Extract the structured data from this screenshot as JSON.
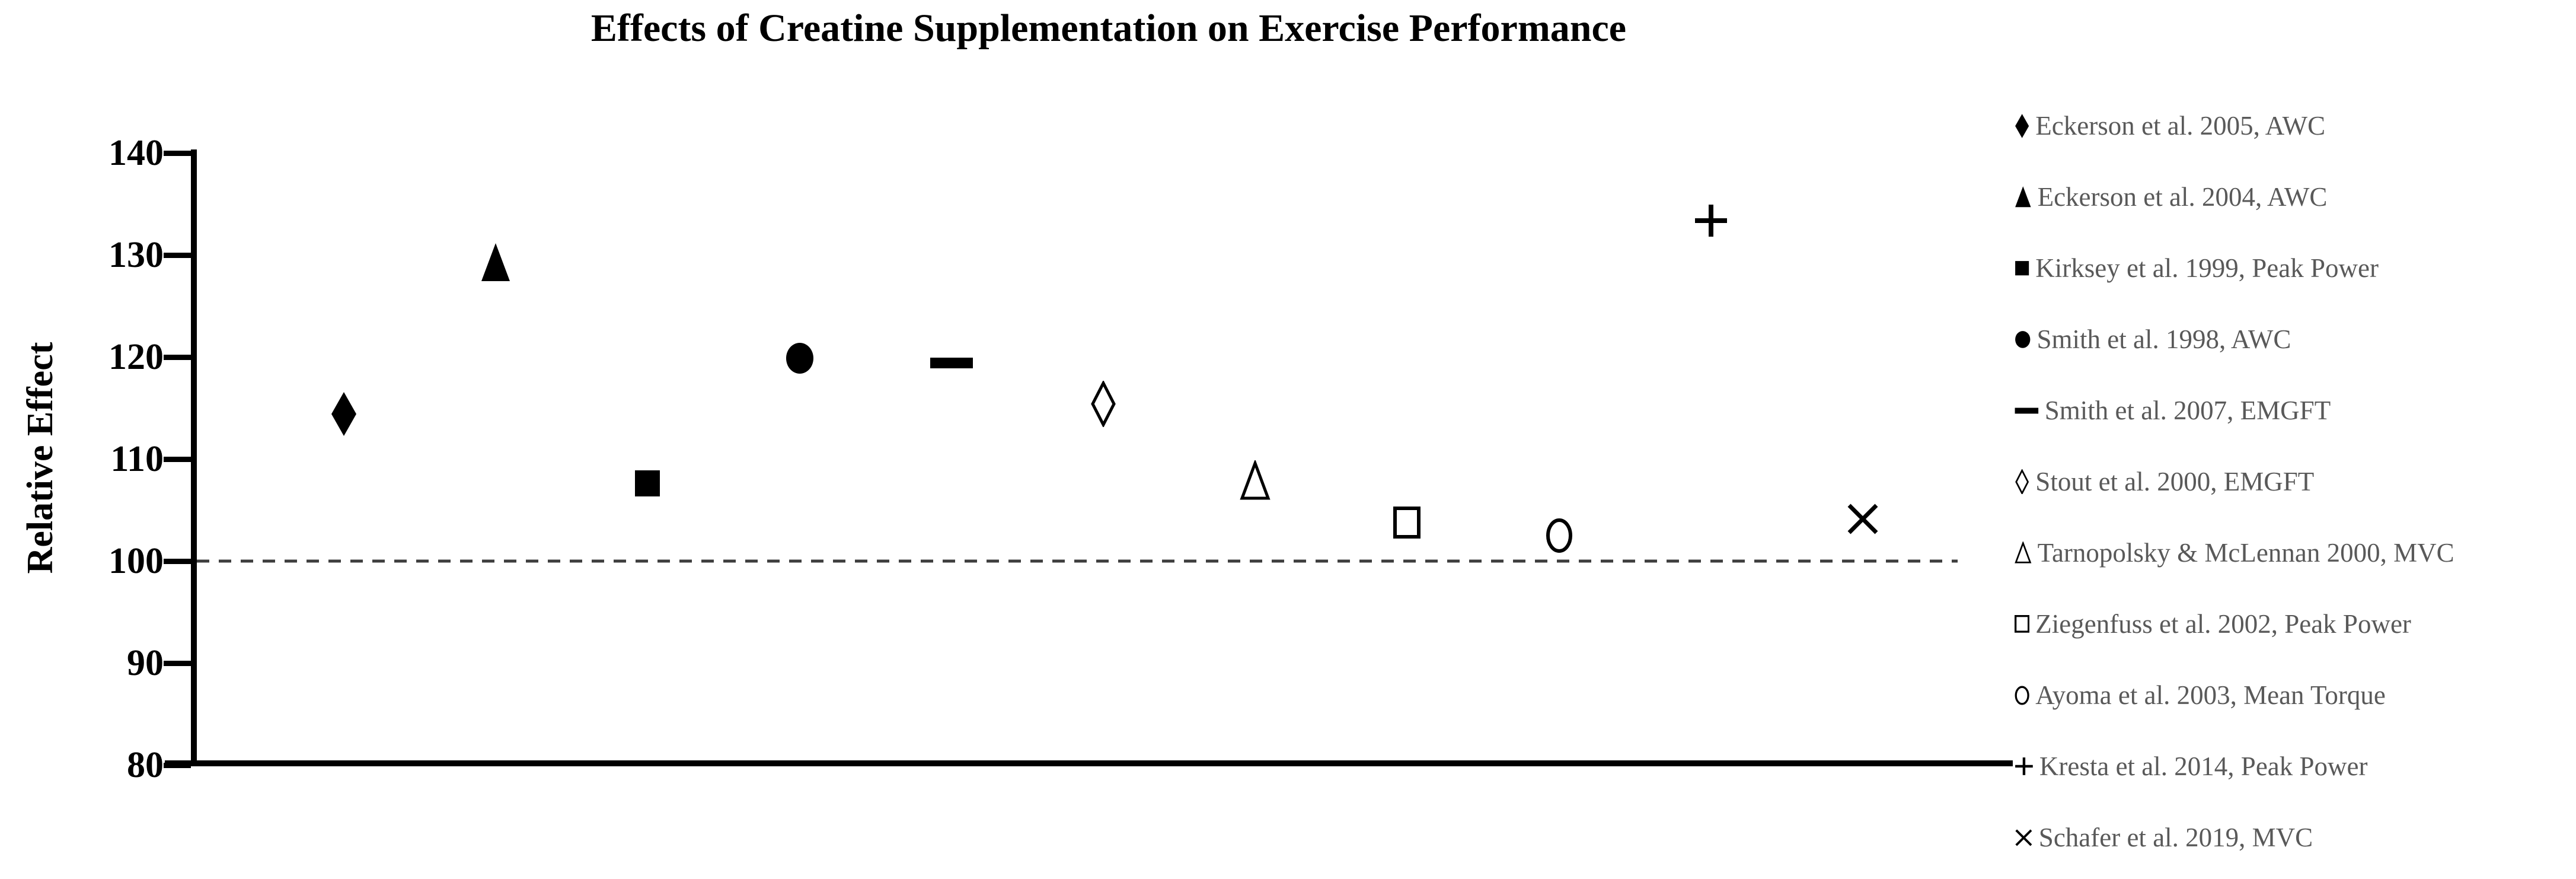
{
  "chart_data": {
    "type": "scatter",
    "title": "Effects of Creatine Supplementation on Exercise Performance",
    "xlabel": "",
    "ylabel": "Relative Effect",
    "ylim": [
      80,
      140
    ],
    "yticks": [
      140,
      130,
      120,
      110,
      100,
      90,
      80
    ],
    "reference_line_y": 100,
    "reference_line_style": "dashed",
    "grid": false,
    "legend_position": "right",
    "marker_color": "#000000",
    "legend_text_color": "#595959",
    "series": [
      {
        "name": "Eckerson et al. 2005, AWC",
        "marker": "filled-diamond",
        "x": 1,
        "y": 114.4
      },
      {
        "name": "Eckerson et al. 2004, AWC",
        "marker": "filled-triangle",
        "x": 2,
        "y": 129.3
      },
      {
        "name": "Kirksey et al. 1999, Peak Power",
        "marker": "filled-square",
        "x": 3,
        "y": 107.6
      },
      {
        "name": "Smith et al. 1998, AWC",
        "marker": "filled-circle",
        "x": 4,
        "y": 119.9
      },
      {
        "name": "Smith et al. 2007, EMGFT",
        "marker": "dash",
        "x": 5,
        "y": 119.4
      },
      {
        "name": "Stout et al. 2000, EMGFT",
        "marker": "open-diamond",
        "x": 6,
        "y": 115.4
      },
      {
        "name": "Tarnopolsky & McLennan 2000, MVC",
        "marker": "open-triangle",
        "x": 7,
        "y": 107.9
      },
      {
        "name": "Ziegenfuss et al. 2002, Peak Power",
        "marker": "open-square",
        "x": 8,
        "y": 103.8
      },
      {
        "name": "Ayoma et al. 2003, Mean Torque",
        "marker": "open-circle",
        "x": 9,
        "y": 102.5
      },
      {
        "name": "Kresta et al. 2014, Peak Power",
        "marker": "plus",
        "x": 10,
        "y": 133.4
      },
      {
        "name": "Schafer et al. 2019, MVC",
        "marker": "x",
        "x": 11,
        "y": 104.1
      }
    ]
  }
}
